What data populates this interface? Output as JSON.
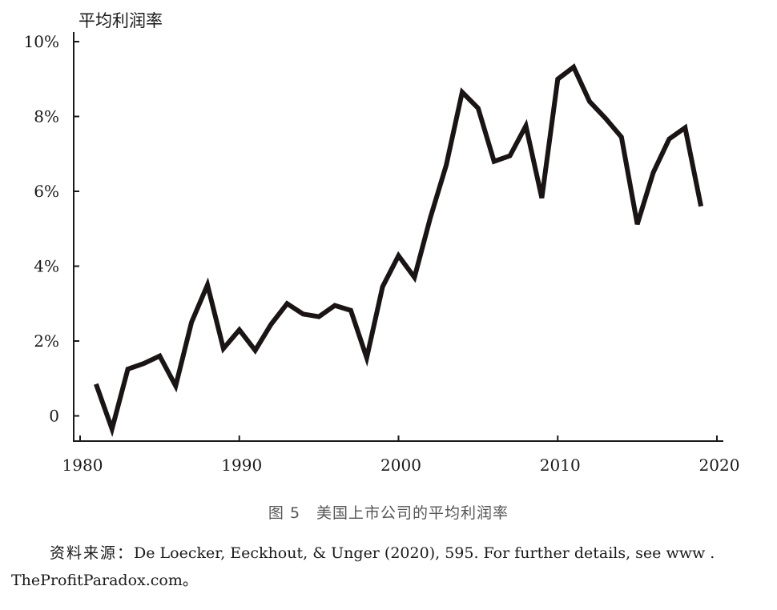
{
  "chart_data": {
    "type": "line",
    "ylabel": "平均利润率",
    "xlabel": "",
    "title": "",
    "x_ticks": [
      "1980",
      "1990",
      "2000",
      "2010",
      "2020"
    ],
    "y_ticks": [
      "0",
      "2%",
      "4%",
      "6%",
      "8%",
      "10%"
    ],
    "xlim": [
      1980,
      2020
    ],
    "ylim": [
      -0.7,
      10
    ],
    "grid": false,
    "line_color": "#1a1414",
    "series": [
      {
        "x": [
          1981,
          1982,
          1983,
          1984,
          1985,
          1986,
          1987,
          1988,
          1989,
          1990,
          1991,
          1992,
          1993,
          1994,
          1995,
          1996,
          1997,
          1998,
          1999,
          2000,
          2001,
          2002,
          2003,
          2004,
          2005,
          2006,
          2007,
          2008,
          2009,
          2010,
          2011,
          2012,
          2013,
          2014,
          2015,
          2016,
          2017,
          2018,
          2019
        ],
        "values": [
          0.85,
          -0.35,
          1.25,
          1.4,
          1.6,
          0.8,
          2.5,
          3.5,
          1.8,
          2.3,
          1.75,
          2.45,
          3.0,
          2.72,
          2.65,
          2.95,
          2.82,
          1.55,
          3.45,
          4.28,
          3.7,
          5.3,
          6.7,
          8.65,
          8.22,
          6.8,
          6.95,
          7.75,
          5.82,
          9.0,
          9.32,
          8.4,
          7.95,
          7.45,
          5.12,
          6.5,
          7.4,
          7.7,
          5.6
        ]
      }
    ]
  },
  "caption": "图 5　美国上市公司的平均利润率",
  "source_label": "资料来源：",
  "source_text": "De Loecker, Eeckhout, & Unger (2020), 595. For further details, see www .",
  "source_text_2": "TheProfitParadox.com。"
}
